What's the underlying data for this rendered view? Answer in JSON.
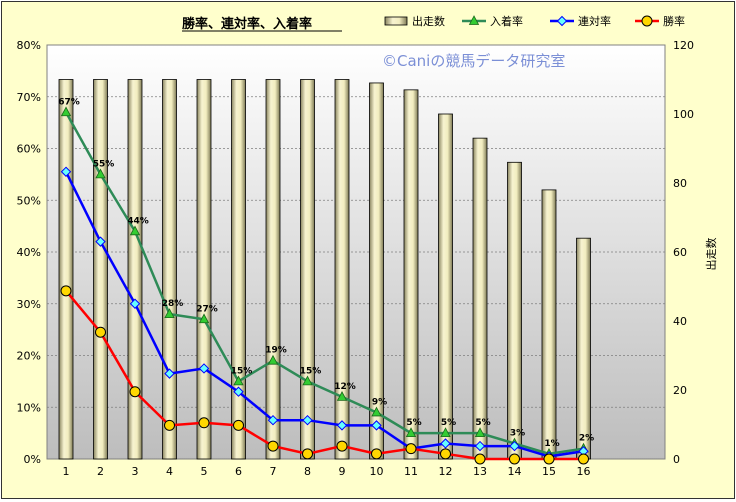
{
  "chart_data": {
    "type": "bar+line",
    "title": "勝率、連対率、入着率",
    "watermark": "©Caniの競馬データ研究室",
    "categories": [
      "1",
      "2",
      "3",
      "4",
      "5",
      "6",
      "7",
      "8",
      "9",
      "10",
      "11",
      "12",
      "13",
      "14",
      "15",
      "16"
    ],
    "ylim_left": [
      0,
      80
    ],
    "ylim_right": [
      0,
      120
    ],
    "left_ticks": [
      "0%",
      "10%",
      "20%",
      "30%",
      "40%",
      "50%",
      "60%",
      "70%",
      "80%"
    ],
    "right_ticks": [
      "0",
      "20",
      "40",
      "60",
      "80",
      "100",
      "120"
    ],
    "ylabel_right": "出走数",
    "legend_position": "top",
    "bar_series": {
      "name": "出走数",
      "values": [
        110,
        110,
        110,
        110,
        110,
        110,
        110,
        110,
        110,
        109,
        107,
        100,
        93,
        86,
        78,
        64
      ],
      "color": "#e6e0a8"
    },
    "series": [
      {
        "name": "入着率",
        "color": "#2e8b57",
        "marker": "triangle",
        "values": [
          67,
          55,
          44,
          28,
          27,
          15,
          19,
          15,
          12,
          9,
          5,
          5,
          5,
          3,
          1,
          2
        ],
        "labels": [
          "67%",
          "55%",
          "44%",
          "28%",
          "27%",
          "15%",
          "19%",
          "15%",
          "12%",
          "9%",
          "5%",
          "5%",
          "5%",
          "3%",
          "1%",
          "2%"
        ]
      },
      {
        "name": "連対率",
        "color": "#0000ff",
        "marker": "diamond",
        "values": [
          55.5,
          42,
          30,
          16.5,
          17.5,
          13,
          7.5,
          7.5,
          6.5,
          6.5,
          2,
          3,
          2.5,
          2.5,
          0.5,
          1.5
        ]
      },
      {
        "name": "勝率",
        "color": "#ff0000",
        "marker": "circle",
        "values": [
          32.5,
          24.5,
          13,
          6.5,
          7,
          6.5,
          2.5,
          1,
          2.5,
          1,
          2,
          1,
          0,
          0,
          0,
          0
        ]
      }
    ]
  }
}
